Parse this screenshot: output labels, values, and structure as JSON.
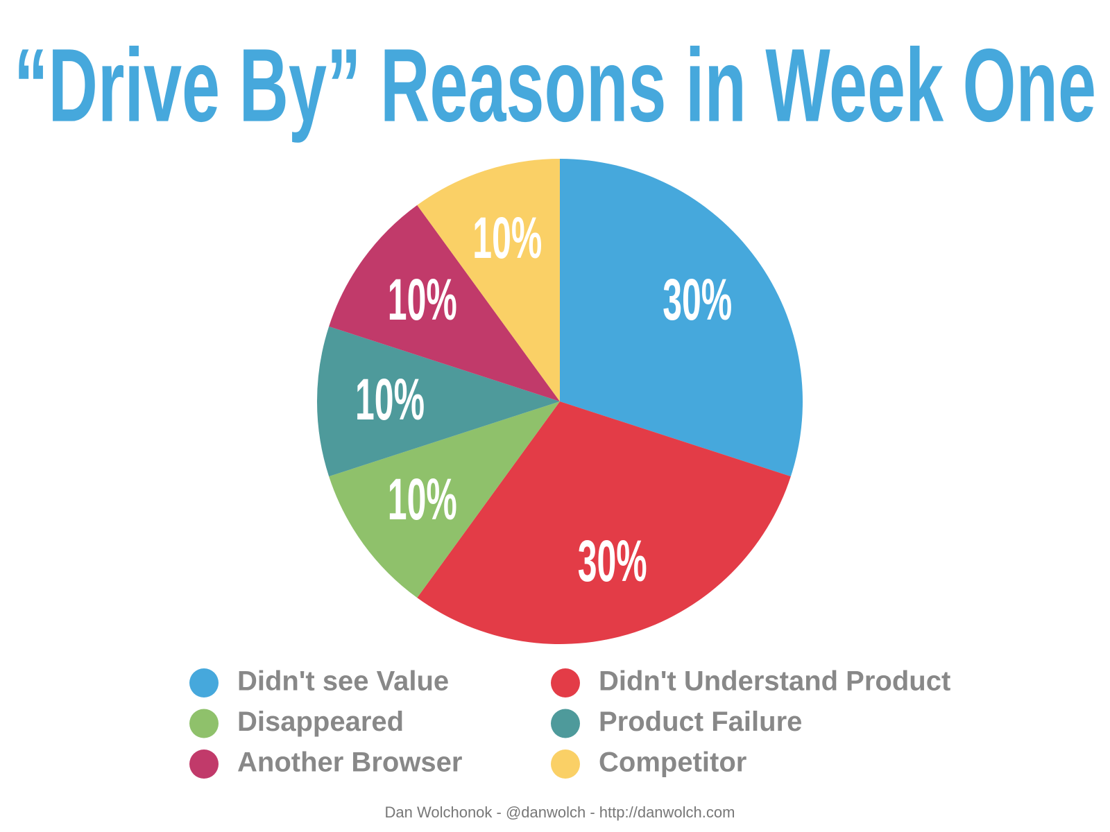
{
  "chart_data": {
    "type": "pie",
    "title": "“Drive By” Reasons in Week One",
    "categories": [
      "Didn't see Value",
      "Didn't Understand Product",
      "Disappeared",
      "Product Failure",
      "Another Browser",
      "Competitor"
    ],
    "values": [
      30,
      30,
      10,
      10,
      10,
      10
    ],
    "value_labels": [
      "30%",
      "30%",
      "10%",
      "10%",
      "10%",
      "10%"
    ],
    "colors": [
      "#46a8dc",
      "#e33c47",
      "#8fc16b",
      "#4e9a9b",
      "#c13a6a",
      "#fad066"
    ],
    "credit": "Dan Wolchonok - @danwolch - http://danwolch.com"
  }
}
